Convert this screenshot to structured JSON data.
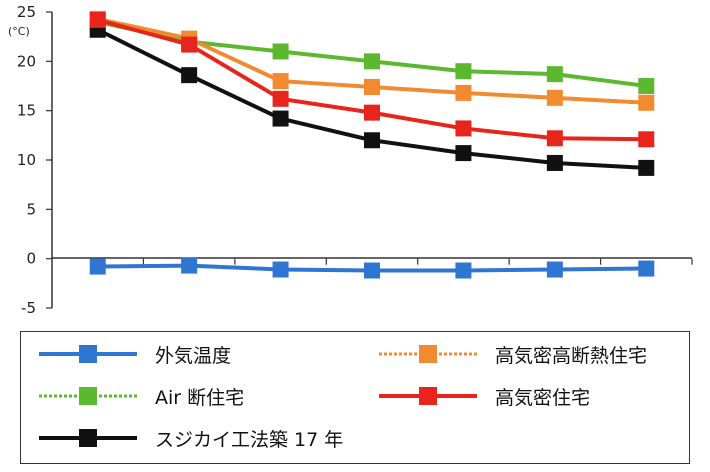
{
  "chart_data": {
    "type": "line",
    "title": "",
    "xlabel": "",
    "ylabel": "(°C)",
    "ylim": [
      -5,
      25
    ],
    "yticks": [
      "25",
      "20",
      "15",
      "10",
      "5",
      "0",
      "-5"
    ],
    "x": [
      1,
      2,
      3,
      4,
      5,
      6,
      7
    ],
    "grid": false,
    "series": [
      {
        "name": "外気温度",
        "color": "#2f76d2",
        "dashed": false,
        "values": [
          -0.8,
          -0.7,
          -1.1,
          -1.2,
          -1.2,
          -1.1,
          -1.0
        ]
      },
      {
        "name": "Air 断住宅",
        "color": "#5cb82e",
        "dashed": true,
        "values": [
          24.0,
          22.0,
          21.0,
          20.0,
          19.0,
          18.7,
          17.5
        ]
      },
      {
        "name": "スジカイ工法築 17 年",
        "color": "#111111",
        "dashed": false,
        "values": [
          23.2,
          18.6,
          14.2,
          12.0,
          10.7,
          9.7,
          9.2
        ]
      },
      {
        "name": "高気密高断熱住宅",
        "color": "#f28b30",
        "dashed": true,
        "values": [
          24.3,
          22.3,
          18.0,
          17.4,
          16.8,
          16.3,
          15.8
        ]
      },
      {
        "name": "高気密住宅",
        "color": "#e8251c",
        "dashed": false,
        "values": [
          24.2,
          21.7,
          16.2,
          14.8,
          13.2,
          12.2,
          12.1
        ]
      }
    ],
    "legend": {
      "placement": "bottom"
    }
  }
}
